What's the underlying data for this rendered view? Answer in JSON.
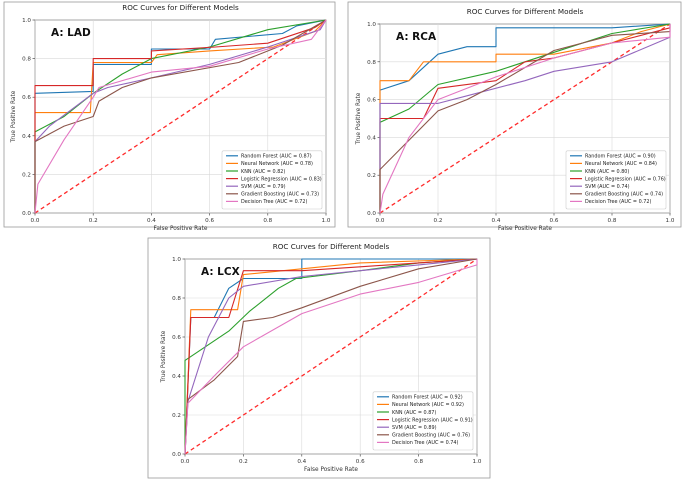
{
  "colors": {
    "Random Forest": "#1f77b4",
    "Neural Network": "#ff7f0e",
    "KNN": "#2ca02c",
    "Logistic Regression": "#d62728",
    "SVM": "#9467bd",
    "Gradient Boosting": "#8c564b",
    "Decision Tree": "#e377c2",
    "diagonal": "#ff2a2a"
  },
  "chart_data": [
    {
      "type": "line",
      "panel_label": "A: LAD",
      "title": "ROC Curves for Different Models",
      "xlabel": "False Positive Rate",
      "ylabel": "True Positive Rate",
      "xlim": [
        0,
        1
      ],
      "ylim": [
        0,
        1
      ],
      "xticks": [
        "0.0",
        "0.2",
        "0.4",
        "0.6",
        "0.8",
        "1.0"
      ],
      "yticks": [
        "0.0",
        "0.2",
        "0.4",
        "0.6",
        "0.8",
        "1.0"
      ],
      "grid": true,
      "legend": "lower-right",
      "series": [
        {
          "name": "Random Forest",
          "label": "Random Forest (AUC = 0.87)",
          "points": [
            [
              0,
              0
            ],
            [
              0,
              0.62
            ],
            [
              0.2,
              0.63
            ],
            [
              0.2,
              0.77
            ],
            [
              0.4,
              0.77
            ],
            [
              0.4,
              0.85
            ],
            [
              0.6,
              0.85
            ],
            [
              0.62,
              0.9
            ],
            [
              0.85,
              0.93
            ],
            [
              0.9,
              0.97
            ],
            [
              1,
              1
            ]
          ]
        },
        {
          "name": "Neural Network",
          "label": "Neural Network (AUC = 0.78)",
          "points": [
            [
              0,
              0
            ],
            [
              0,
              0.52
            ],
            [
              0.05,
              0.52
            ],
            [
              0.19,
              0.52
            ],
            [
              0.2,
              0.78
            ],
            [
              0.4,
              0.78
            ],
            [
              0.42,
              0.82
            ],
            [
              0.6,
              0.84
            ],
            [
              0.82,
              0.86
            ],
            [
              0.96,
              0.94
            ],
            [
              1,
              1
            ]
          ]
        },
        {
          "name": "KNN",
          "label": "KNN (AUC = 0.82)",
          "points": [
            [
              0,
              0
            ],
            [
              0,
              0.42
            ],
            [
              0.1,
              0.5
            ],
            [
              0.2,
              0.62
            ],
            [
              0.3,
              0.72
            ],
            [
              0.4,
              0.8
            ],
            [
              0.6,
              0.86
            ],
            [
              0.8,
              0.95
            ],
            [
              1,
              1
            ]
          ]
        },
        {
          "name": "Logistic Regression",
          "label": "Logistic Regression (AUC = 0.83)",
          "points": [
            [
              0,
              0
            ],
            [
              0,
              0.66
            ],
            [
              0.2,
              0.66
            ],
            [
              0.2,
              0.8
            ],
            [
              0.4,
              0.8
            ],
            [
              0.4,
              0.84
            ],
            [
              0.62,
              0.86
            ],
            [
              0.8,
              0.88
            ],
            [
              0.96,
              0.96
            ],
            [
              1,
              1
            ]
          ]
        },
        {
          "name": "SVM",
          "label": "SVM (AUC = 0.79)",
          "points": [
            [
              0,
              0
            ],
            [
              0,
              0.37
            ],
            [
              0.05,
              0.45
            ],
            [
              0.2,
              0.62
            ],
            [
              0.25,
              0.65
            ],
            [
              0.4,
              0.7
            ],
            [
              0.6,
              0.77
            ],
            [
              0.8,
              0.86
            ],
            [
              0.98,
              0.95
            ],
            [
              1,
              1
            ]
          ]
        },
        {
          "name": "Gradient Boosting",
          "label": "Gradient Boosting (AUC = 0.73)",
          "points": [
            [
              0,
              0
            ],
            [
              0,
              0.37
            ],
            [
              0.1,
              0.45
            ],
            [
              0.2,
              0.5
            ],
            [
              0.22,
              0.58
            ],
            [
              0.3,
              0.65
            ],
            [
              0.4,
              0.7
            ],
            [
              0.7,
              0.78
            ],
            [
              0.85,
              0.87
            ],
            [
              1,
              1
            ]
          ]
        },
        {
          "name": "Decision Tree",
          "label": "Decision Tree (AUC = 0.72)",
          "points": [
            [
              0,
              0
            ],
            [
              0.01,
              0.15
            ],
            [
              0.1,
              0.38
            ],
            [
              0.2,
              0.6
            ],
            [
              0.22,
              0.65
            ],
            [
              0.4,
              0.73
            ],
            [
              0.6,
              0.76
            ],
            [
              0.8,
              0.85
            ],
            [
              0.95,
              0.9
            ],
            [
              1,
              1
            ]
          ]
        }
      ]
    },
    {
      "type": "line",
      "panel_label": "A: RCA",
      "title": "ROC Curves for Different Models",
      "xlabel": "False Positive Rate",
      "ylabel": "True Positive Rate",
      "xlim": [
        0,
        1
      ],
      "ylim": [
        0,
        1
      ],
      "xticks": [
        "0.0",
        "0.2",
        "0.4",
        "0.6",
        "0.8",
        "1.0"
      ],
      "yticks": [
        "0.0",
        "0.2",
        "0.4",
        "0.6",
        "0.8",
        "1.0"
      ],
      "grid": true,
      "legend": "lower-right",
      "series": [
        {
          "name": "Random Forest",
          "label": "Random Forest (AUC = 0.90)",
          "points": [
            [
              0,
              0
            ],
            [
              0,
              0.65
            ],
            [
              0.1,
              0.7
            ],
            [
              0.2,
              0.84
            ],
            [
              0.3,
              0.88
            ],
            [
              0.4,
              0.88
            ],
            [
              0.4,
              0.98
            ],
            [
              0.6,
              0.98
            ],
            [
              0.8,
              0.98
            ],
            [
              1,
              1
            ]
          ]
        },
        {
          "name": "Neural Network",
          "label": "Neural Network (AUC = 0.84)",
          "points": [
            [
              0,
              0
            ],
            [
              0,
              0.7
            ],
            [
              0.1,
              0.7
            ],
            [
              0.15,
              0.8
            ],
            [
              0.4,
              0.8
            ],
            [
              0.4,
              0.84
            ],
            [
              0.6,
              0.84
            ],
            [
              0.8,
              0.9
            ],
            [
              0.9,
              0.96
            ],
            [
              1,
              1
            ]
          ]
        },
        {
          "name": "KNN",
          "label": "KNN (AUC = 0.80)",
          "points": [
            [
              0,
              0
            ],
            [
              0,
              0.48
            ],
            [
              0.1,
              0.55
            ],
            [
              0.2,
              0.68
            ],
            [
              0.4,
              0.75
            ],
            [
              0.6,
              0.85
            ],
            [
              0.8,
              0.95
            ],
            [
              1,
              1
            ]
          ]
        },
        {
          "name": "Logistic Regression",
          "label": "Logistic Regression (AUC = 0.76)",
          "points": [
            [
              0,
              0
            ],
            [
              0,
              0.5
            ],
            [
              0.15,
              0.5
            ],
            [
              0.2,
              0.66
            ],
            [
              0.4,
              0.7
            ],
            [
              0.5,
              0.8
            ],
            [
              0.6,
              0.82
            ],
            [
              0.8,
              0.9
            ],
            [
              1,
              0.98
            ],
            [
              1,
              1
            ]
          ]
        },
        {
          "name": "SVM",
          "label": "SVM (AUC = 0.74)",
          "points": [
            [
              0,
              0
            ],
            [
              0,
              0.58
            ],
            [
              0.2,
              0.58
            ],
            [
              0.3,
              0.62
            ],
            [
              0.5,
              0.7
            ],
            [
              0.6,
              0.75
            ],
            [
              0.8,
              0.8
            ],
            [
              1,
              0.93
            ],
            [
              1,
              1
            ]
          ]
        },
        {
          "name": "Gradient Boosting",
          "label": "Gradient Boosting (AUC = 0.74)",
          "points": [
            [
              0,
              0
            ],
            [
              0,
              0.23
            ],
            [
              0.2,
              0.54
            ],
            [
              0.3,
              0.6
            ],
            [
              0.4,
              0.68
            ],
            [
              0.6,
              0.86
            ],
            [
              0.8,
              0.94
            ],
            [
              1,
              0.96
            ],
            [
              1,
              1
            ]
          ]
        },
        {
          "name": "Decision Tree",
          "label": "Decision Tree (AUC = 0.72)",
          "points": [
            [
              0,
              0
            ],
            [
              0.01,
              0.1
            ],
            [
              0.1,
              0.4
            ],
            [
              0.2,
              0.6
            ],
            [
              0.4,
              0.72
            ],
            [
              0.6,
              0.82
            ],
            [
              0.8,
              0.9
            ],
            [
              1,
              0.93
            ],
            [
              1,
              1
            ]
          ]
        }
      ]
    },
    {
      "type": "line",
      "panel_label": "A: LCX",
      "title": "ROC Curves for Different Models",
      "xlabel": "False Positive Rate",
      "ylabel": "True Positive Rate",
      "xlim": [
        0,
        1
      ],
      "ylim": [
        0,
        1
      ],
      "xticks": [
        "0.0",
        "0.2",
        "0.4",
        "0.6",
        "0.8",
        "1.0"
      ],
      "yticks": [
        "0.0",
        "0.2",
        "0.4",
        "0.6",
        "0.8",
        "1.0"
      ],
      "grid": true,
      "legend": "lower-right",
      "series": [
        {
          "name": "Random Forest",
          "label": "Random Forest (AUC = 0.92)",
          "points": [
            [
              0,
              0
            ],
            [
              0.02,
              0.7
            ],
            [
              0.1,
              0.7
            ],
            [
              0.15,
              0.85
            ],
            [
              0.2,
              0.9
            ],
            [
              0.4,
              0.9
            ],
            [
              0.4,
              1
            ],
            [
              0.6,
              1
            ],
            [
              0.8,
              1
            ],
            [
              1,
              1
            ]
          ]
        },
        {
          "name": "Neural Network",
          "label": "Neural Network (AUC = 0.92)",
          "points": [
            [
              0,
              0
            ],
            [
              0.02,
              0.74
            ],
            [
              0.08,
              0.74
            ],
            [
              0.18,
              0.74
            ],
            [
              0.2,
              0.92
            ],
            [
              0.4,
              0.95
            ],
            [
              0.6,
              0.98
            ],
            [
              1,
              1
            ]
          ]
        },
        {
          "name": "KNN",
          "label": "KNN (AUC = 0.87)",
          "points": [
            [
              0,
              0
            ],
            [
              0,
              0.48
            ],
            [
              0.15,
              0.63
            ],
            [
              0.22,
              0.73
            ],
            [
              0.32,
              0.85
            ],
            [
              0.38,
              0.9
            ],
            [
              0.6,
              0.94
            ],
            [
              0.8,
              0.98
            ],
            [
              1,
              1
            ]
          ]
        },
        {
          "name": "Logistic Regression",
          "label": "Logistic Regression (AUC = 0.91)",
          "points": [
            [
              0,
              0
            ],
            [
              0.02,
              0.7
            ],
            [
              0.15,
              0.7
            ],
            [
              0.2,
              0.94
            ],
            [
              0.4,
              0.94
            ],
            [
              0.6,
              0.96
            ],
            [
              0.8,
              0.98
            ],
            [
              1,
              1
            ]
          ]
        },
        {
          "name": "SVM",
          "label": "SVM (AUC = 0.89)",
          "points": [
            [
              0,
              0
            ],
            [
              0.01,
              0.27
            ],
            [
              0.08,
              0.6
            ],
            [
              0.15,
              0.8
            ],
            [
              0.2,
              0.86
            ],
            [
              0.4,
              0.91
            ],
            [
              0.6,
              0.94
            ],
            [
              0.8,
              0.97
            ],
            [
              1,
              1
            ]
          ]
        },
        {
          "name": "Gradient Boosting",
          "label": "Gradient Boosting (AUC = 0.76)",
          "points": [
            [
              0,
              0
            ],
            [
              0.01,
              0.28
            ],
            [
              0.1,
              0.38
            ],
            [
              0.18,
              0.5
            ],
            [
              0.2,
              0.68
            ],
            [
              0.3,
              0.7
            ],
            [
              0.4,
              0.75
            ],
            [
              0.6,
              0.86
            ],
            [
              0.8,
              0.95
            ],
            [
              1,
              1
            ]
          ]
        },
        {
          "name": "Decision Tree",
          "label": "Decision Tree (AUC = 0.74)",
          "points": [
            [
              0,
              0
            ],
            [
              0.01,
              0.26
            ],
            [
              0.1,
              0.4
            ],
            [
              0.2,
              0.55
            ],
            [
              0.4,
              0.72
            ],
            [
              0.6,
              0.82
            ],
            [
              0.8,
              0.88
            ],
            [
              1,
              0.97
            ],
            [
              1,
              1
            ]
          ]
        }
      ]
    }
  ]
}
